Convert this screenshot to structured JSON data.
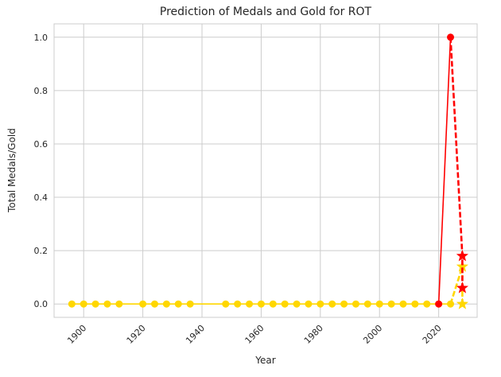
{
  "chart_data": {
    "type": "line",
    "title": "Prediction of Medals and Gold for ROT",
    "xlabel": "Year",
    "ylabel": "Total Medals/Gold",
    "xlim": [
      1890,
      2033
    ],
    "ylim": [
      -0.05,
      1.05
    ],
    "x_ticks": [
      1900,
      1920,
      1940,
      1960,
      1980,
      2000,
      2020
    ],
    "y_ticks": [
      0.0,
      0.2,
      0.4,
      0.6,
      0.8,
      1.0
    ],
    "x_tick_labels": [
      "1900",
      "1920",
      "1940",
      "1960",
      "1980",
      "2000",
      "2020"
    ],
    "y_tick_labels": [
      "0.0",
      "0.2",
      "0.4",
      "0.6",
      "0.8",
      "1.0"
    ],
    "grid": true,
    "colors": {
      "medals": "#ff0000",
      "gold": "#ffd700",
      "grid": "#cccccc",
      "axes": "#cccccc"
    },
    "series": [
      {
        "color": "#ff0000",
        "style": "solid",
        "marker": "circle",
        "points": [
          [
            2020,
            0
          ],
          [
            2024,
            1.0
          ]
        ]
      },
      {
        "color": "#ff0000",
        "style": "dashed",
        "marker": "star",
        "points": [
          [
            2024,
            1.0
          ],
          [
            2028,
            0.18
          ],
          [
            2028,
            0.06
          ]
        ]
      },
      {
        "color": "#ffd700",
        "style": "solid",
        "marker": "circle",
        "points": [
          [
            1896,
            0
          ],
          [
            1900,
            0
          ],
          [
            1904,
            0
          ],
          [
            1908,
            0
          ],
          [
            1912,
            0
          ],
          [
            1920,
            0
          ],
          [
            1924,
            0
          ],
          [
            1928,
            0
          ],
          [
            1932,
            0
          ],
          [
            1936,
            0
          ],
          [
            1948,
            0
          ],
          [
            1952,
            0
          ],
          [
            1956,
            0
          ],
          [
            1960,
            0
          ],
          [
            1964,
            0
          ],
          [
            1968,
            0
          ],
          [
            1972,
            0
          ],
          [
            1976,
            0
          ],
          [
            1980,
            0
          ],
          [
            1984,
            0
          ],
          [
            1988,
            0
          ],
          [
            1992,
            0
          ],
          [
            1996,
            0
          ],
          [
            2000,
            0
          ],
          [
            2004,
            0
          ],
          [
            2008,
            0
          ],
          [
            2012,
            0
          ],
          [
            2016,
            0
          ],
          [
            2020,
            0
          ],
          [
            2024,
            0
          ]
        ]
      },
      {
        "color": "#ffd700",
        "style": "dashed",
        "marker": "star",
        "points": [
          [
            2024,
            0
          ],
          [
            2028,
            0.14
          ],
          [
            2028,
            0.0
          ]
        ]
      }
    ]
  }
}
